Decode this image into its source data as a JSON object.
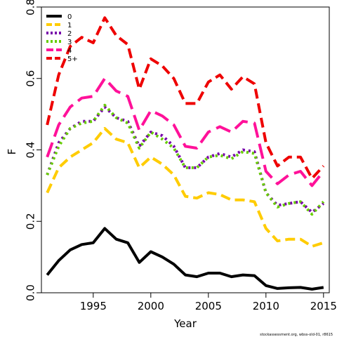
{
  "chart_data": {
    "type": "line",
    "title": "",
    "xlabel": "Year",
    "ylabel": "F",
    "xlim": [
      1990.5,
      2015.5
    ],
    "ylim": [
      0.0,
      0.8
    ],
    "x_ticks": [
      1995,
      2000,
      2005,
      2010,
      2015
    ],
    "y_ticks": [
      0.0,
      0.2,
      0.4,
      0.6,
      0.8
    ],
    "x_tick_labels": [
      "1995",
      "2000",
      "2005",
      "2010",
      "2015"
    ],
    "y_tick_labels": [
      "0.0",
      "0.2",
      "0.4",
      "0.6",
      "0.8"
    ],
    "legend_position": "top-left",
    "x": [
      1991,
      1992,
      1993,
      1994,
      1995,
      1996,
      1997,
      1998,
      1999,
      2000,
      2001,
      2002,
      2003,
      2004,
      2005,
      2006,
      2007,
      2008,
      2009,
      2010,
      2011,
      2012,
      2013,
      2014,
      2015
    ],
    "series": [
      {
        "name": "0",
        "color": "#000000",
        "dash": "solid",
        "values": [
          0.05,
          0.09,
          0.12,
          0.135,
          0.14,
          0.18,
          0.15,
          0.14,
          0.085,
          0.115,
          0.1,
          0.08,
          0.05,
          0.045,
          0.055,
          0.055,
          0.045,
          0.05,
          0.048,
          0.02,
          0.012,
          0.014,
          0.015,
          0.01,
          0.015
        ]
      },
      {
        "name": "1",
        "color": "#FFCC00",
        "dash": "dashed",
        "values": [
          0.28,
          0.35,
          0.38,
          0.4,
          0.42,
          0.46,
          0.43,
          0.42,
          0.35,
          0.38,
          0.36,
          0.33,
          0.27,
          0.265,
          0.28,
          0.275,
          0.26,
          0.26,
          0.255,
          0.18,
          0.145,
          0.15,
          0.15,
          0.13,
          0.14
        ]
      },
      {
        "name": "2",
        "color": "#7700AA",
        "dash": "dotted",
        "values": [
          0.33,
          0.42,
          0.46,
          0.48,
          0.48,
          0.52,
          0.49,
          0.48,
          0.41,
          0.45,
          0.44,
          0.41,
          0.35,
          0.35,
          0.38,
          0.39,
          0.38,
          0.4,
          0.395,
          0.28,
          0.245,
          0.25,
          0.255,
          0.225,
          0.25
        ]
      },
      {
        "name": "3",
        "color": "#66CC00",
        "dash": "dotted",
        "values": [
          0.33,
          0.41,
          0.46,
          0.475,
          0.48,
          0.525,
          0.49,
          0.475,
          0.405,
          0.45,
          0.43,
          0.405,
          0.35,
          0.35,
          0.38,
          0.385,
          0.375,
          0.395,
          0.39,
          0.28,
          0.24,
          0.25,
          0.255,
          0.22,
          0.255
        ]
      },
      {
        "name": "4",
        "color": "#FF1199",
        "dash": "longdash",
        "values": [
          0.38,
          0.47,
          0.52,
          0.545,
          0.55,
          0.6,
          0.565,
          0.55,
          0.455,
          0.51,
          0.495,
          0.47,
          0.41,
          0.405,
          0.45,
          0.465,
          0.45,
          0.48,
          0.475,
          0.34,
          0.305,
          0.33,
          0.34,
          0.3,
          0.34
        ]
      },
      {
        "name": "5+",
        "color": "#EE0000",
        "dash": "dashed",
        "values": [
          0.47,
          0.61,
          0.69,
          0.715,
          0.7,
          0.77,
          0.72,
          0.695,
          0.57,
          0.655,
          0.635,
          0.6,
          0.53,
          0.53,
          0.59,
          0.61,
          0.57,
          0.605,
          0.585,
          0.42,
          0.355,
          0.38,
          0.38,
          0.32,
          0.355
        ]
      }
    ]
  },
  "credit": "stockassessment.org, wbss-old-01, r8615"
}
